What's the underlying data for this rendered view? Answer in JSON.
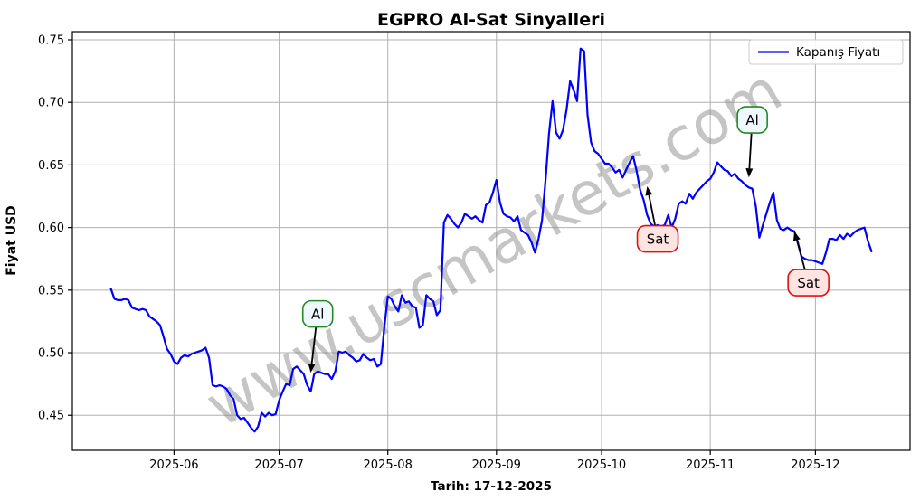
{
  "chart_data": {
    "type": "line",
    "title": "EGPRO Al-Sat Sinyalleri",
    "xlabel": "Tarih: 17-12-2025",
    "ylabel": "Fiyat USD",
    "legend_label": "Kapanış Fiyatı",
    "legend_position": "upper right",
    "watermark": "www.uscmarkets.com",
    "grid": true,
    "ylim": [
      0.422,
      0.7565
    ],
    "xlim": [
      "2025-05-03",
      "2025-12-28"
    ],
    "yticks": [
      "0.45",
      "0.50",
      "0.55",
      "0.60",
      "0.65",
      "0.70",
      "0.75"
    ],
    "xticks": [
      {
        "label": "2025-06",
        "date": "2025-06-01"
      },
      {
        "label": "2025-07",
        "date": "2025-07-01"
      },
      {
        "label": "2025-08",
        "date": "2025-08-01"
      },
      {
        "label": "2025-09",
        "date": "2025-09-01"
      },
      {
        "label": "2025-10",
        "date": "2025-10-01"
      },
      {
        "label": "2025-11",
        "date": "2025-11-01"
      },
      {
        "label": "2025-12",
        "date": "2025-12-01"
      }
    ],
    "colors": {
      "line": "#0000ff",
      "grid": "#b0b0b0",
      "frame": "#000000",
      "buy_border": "#228b22",
      "buy_fill": "#f0f8ff",
      "sell_border": "#e01010",
      "sell_fill": "#ffe4e1",
      "arrow": "#000000",
      "watermark": "#8c8c8c"
    },
    "signals": [
      {
        "label": "Al",
        "kind": "buy",
        "arrow_date": "2025-07-10",
        "arrow_value": 0.484,
        "box_date": "2025-07-12",
        "box_value": 0.531
      },
      {
        "label": "Sat",
        "kind": "sell",
        "arrow_date": "2025-10-14",
        "arrow_value": 0.633,
        "box_date": "2025-10-17",
        "box_value": 0.591
      },
      {
        "label": "Al",
        "kind": "buy",
        "arrow_date": "2025-11-12",
        "arrow_value": 0.64,
        "box_date": "2025-11-13",
        "box_value": 0.686
      },
      {
        "label": "Sat",
        "kind": "sell",
        "arrow_date": "2025-11-25",
        "arrow_value": 0.597,
        "box_date": "2025-11-29",
        "box_value": 0.556
      }
    ],
    "series": [
      {
        "name": "Kapanış Fiyatı",
        "points": [
          [
            "2025-05-14",
            0.551
          ],
          [
            "2025-05-15",
            0.543
          ],
          [
            "2025-05-16",
            0.542
          ],
          [
            "2025-05-17",
            0.542
          ],
          [
            "2025-05-18",
            0.543
          ],
          [
            "2025-05-19",
            0.542
          ],
          [
            "2025-05-20",
            0.536
          ],
          [
            "2025-05-21",
            0.535
          ],
          [
            "2025-05-22",
            0.534
          ],
          [
            "2025-05-23",
            0.535
          ],
          [
            "2025-05-24",
            0.534
          ],
          [
            "2025-05-25",
            0.529
          ],
          [
            "2025-05-26",
            0.527
          ],
          [
            "2025-05-27",
            0.525
          ],
          [
            "2025-05-28",
            0.522
          ],
          [
            "2025-05-29",
            0.513
          ],
          [
            "2025-05-30",
            0.503
          ],
          [
            "2025-05-31",
            0.499
          ],
          [
            "2025-06-01",
            0.493
          ],
          [
            "2025-06-02",
            0.491
          ],
          [
            "2025-06-03",
            0.496
          ],
          [
            "2025-06-04",
            0.498
          ],
          [
            "2025-06-05",
            0.497
          ],
          [
            "2025-06-06",
            0.499
          ],
          [
            "2025-06-07",
            0.5
          ],
          [
            "2025-06-08",
            0.501
          ],
          [
            "2025-06-09",
            0.502
          ],
          [
            "2025-06-10",
            0.504
          ],
          [
            "2025-06-11",
            0.496
          ],
          [
            "2025-06-12",
            0.474
          ],
          [
            "2025-06-13",
            0.473
          ],
          [
            "2025-06-14",
            0.474
          ],
          [
            "2025-06-15",
            0.473
          ],
          [
            "2025-06-16",
            0.471
          ],
          [
            "2025-06-17",
            0.466
          ],
          [
            "2025-06-18",
            0.463
          ],
          [
            "2025-06-19",
            0.45
          ],
          [
            "2025-06-20",
            0.447
          ],
          [
            "2025-06-21",
            0.448
          ],
          [
            "2025-06-22",
            0.444
          ],
          [
            "2025-06-23",
            0.44
          ],
          [
            "2025-06-24",
            0.437
          ],
          [
            "2025-06-25",
            0.441
          ],
          [
            "2025-06-26",
            0.452
          ],
          [
            "2025-06-27",
            0.449
          ],
          [
            "2025-06-28",
            0.452
          ],
          [
            "2025-06-29",
            0.45
          ],
          [
            "2025-06-30",
            0.451
          ],
          [
            "2025-07-01",
            0.462
          ],
          [
            "2025-07-02",
            0.469
          ],
          [
            "2025-07-03",
            0.475
          ],
          [
            "2025-07-04",
            0.474
          ],
          [
            "2025-07-05",
            0.487
          ],
          [
            "2025-07-06",
            0.489
          ],
          [
            "2025-07-07",
            0.486
          ],
          [
            "2025-07-08",
            0.483
          ],
          [
            "2025-07-09",
            0.474
          ],
          [
            "2025-07-10",
            0.469
          ],
          [
            "2025-07-11",
            0.483
          ],
          [
            "2025-07-12",
            0.485
          ],
          [
            "2025-07-13",
            0.484
          ],
          [
            "2025-07-14",
            0.483
          ],
          [
            "2025-07-15",
            0.483
          ],
          [
            "2025-07-16",
            0.479
          ],
          [
            "2025-07-17",
            0.485
          ],
          [
            "2025-07-18",
            0.501
          ],
          [
            "2025-07-19",
            0.5
          ],
          [
            "2025-07-20",
            0.501
          ],
          [
            "2025-07-21",
            0.498
          ],
          [
            "2025-07-22",
            0.496
          ],
          [
            "2025-07-23",
            0.493
          ],
          [
            "2025-07-24",
            0.494
          ],
          [
            "2025-07-25",
            0.499
          ],
          [
            "2025-07-26",
            0.496
          ],
          [
            "2025-07-27",
            0.494
          ],
          [
            "2025-07-28",
            0.495
          ],
          [
            "2025-07-29",
            0.489
          ],
          [
            "2025-07-30",
            0.491
          ],
          [
            "2025-07-31",
            0.52
          ],
          [
            "2025-08-01",
            0.545
          ],
          [
            "2025-08-02",
            0.543
          ],
          [
            "2025-08-03",
            0.537
          ],
          [
            "2025-08-04",
            0.533
          ],
          [
            "2025-08-05",
            0.546
          ],
          [
            "2025-08-06",
            0.54
          ],
          [
            "2025-08-07",
            0.541
          ],
          [
            "2025-08-08",
            0.537
          ],
          [
            "2025-08-09",
            0.536
          ],
          [
            "2025-08-10",
            0.52
          ],
          [
            "2025-08-11",
            0.522
          ],
          [
            "2025-08-12",
            0.546
          ],
          [
            "2025-08-13",
            0.543
          ],
          [
            "2025-08-14",
            0.541
          ],
          [
            "2025-08-15",
            0.53
          ],
          [
            "2025-08-16",
            0.534
          ],
          [
            "2025-08-17",
            0.604
          ],
          [
            "2025-08-18",
            0.61
          ],
          [
            "2025-08-19",
            0.607
          ],
          [
            "2025-08-20",
            0.603
          ],
          [
            "2025-08-21",
            0.6
          ],
          [
            "2025-08-22",
            0.604
          ],
          [
            "2025-08-23",
            0.611
          ],
          [
            "2025-08-24",
            0.609
          ],
          [
            "2025-08-25",
            0.607
          ],
          [
            "2025-08-26",
            0.609
          ],
          [
            "2025-08-27",
            0.606
          ],
          [
            "2025-08-28",
            0.604
          ],
          [
            "2025-08-29",
            0.618
          ],
          [
            "2025-08-30",
            0.62
          ],
          [
            "2025-08-31",
            0.628
          ],
          [
            "2025-09-01",
            0.638
          ],
          [
            "2025-09-02",
            0.62
          ],
          [
            "2025-09-03",
            0.611
          ],
          [
            "2025-09-04",
            0.609
          ],
          [
            "2025-09-05",
            0.608
          ],
          [
            "2025-09-06",
            0.605
          ],
          [
            "2025-09-07",
            0.609
          ],
          [
            "2025-09-08",
            0.598
          ],
          [
            "2025-09-09",
            0.596
          ],
          [
            "2025-09-10",
            0.594
          ],
          [
            "2025-09-11",
            0.588
          ],
          [
            "2025-09-12",
            0.58
          ],
          [
            "2025-09-13",
            0.591
          ],
          [
            "2025-09-14",
            0.606
          ],
          [
            "2025-09-15",
            0.638
          ],
          [
            "2025-09-16",
            0.675
          ],
          [
            "2025-09-17",
            0.701
          ],
          [
            "2025-09-18",
            0.676
          ],
          [
            "2025-09-19",
            0.671
          ],
          [
            "2025-09-20",
            0.678
          ],
          [
            "2025-09-21",
            0.694
          ],
          [
            "2025-09-22",
            0.717
          ],
          [
            "2025-09-23",
            0.71
          ],
          [
            "2025-09-24",
            0.701
          ],
          [
            "2025-09-25",
            0.743
          ],
          [
            "2025-09-26",
            0.741
          ],
          [
            "2025-09-27",
            0.69
          ],
          [
            "2025-09-28",
            0.668
          ],
          [
            "2025-09-29",
            0.661
          ],
          [
            "2025-09-30",
            0.659
          ],
          [
            "2025-10-01",
            0.655
          ],
          [
            "2025-10-02",
            0.651
          ],
          [
            "2025-10-03",
            0.651
          ],
          [
            "2025-10-04",
            0.648
          ],
          [
            "2025-10-05",
            0.644
          ],
          [
            "2025-10-06",
            0.646
          ],
          [
            "2025-10-07",
            0.64
          ],
          [
            "2025-10-08",
            0.646
          ],
          [
            "2025-10-09",
            0.652
          ],
          [
            "2025-10-10",
            0.657
          ],
          [
            "2025-10-11",
            0.645
          ],
          [
            "2025-10-12",
            0.63
          ],
          [
            "2025-10-13",
            0.622
          ],
          [
            "2025-10-14",
            0.61
          ],
          [
            "2025-10-15",
            0.603
          ],
          [
            "2025-10-16",
            0.601
          ],
          [
            "2025-10-17",
            0.602
          ],
          [
            "2025-10-18",
            0.601
          ],
          [
            "2025-10-19",
            0.602
          ],
          [
            "2025-10-20",
            0.61
          ],
          [
            "2025-10-21",
            0.6
          ],
          [
            "2025-10-22",
            0.607
          ],
          [
            "2025-10-23",
            0.619
          ],
          [
            "2025-10-24",
            0.621
          ],
          [
            "2025-10-25",
            0.619
          ],
          [
            "2025-10-26",
            0.627
          ],
          [
            "2025-10-27",
            0.623
          ],
          [
            "2025-10-28",
            0.628
          ],
          [
            "2025-10-29",
            0.631
          ],
          [
            "2025-10-30",
            0.634
          ],
          [
            "2025-10-31",
            0.637
          ],
          [
            "2025-11-01",
            0.639
          ],
          [
            "2025-11-02",
            0.644
          ],
          [
            "2025-11-03",
            0.652
          ],
          [
            "2025-11-04",
            0.649
          ],
          [
            "2025-11-05",
            0.646
          ],
          [
            "2025-11-06",
            0.645
          ],
          [
            "2025-11-07",
            0.641
          ],
          [
            "2025-11-08",
            0.643
          ],
          [
            "2025-11-09",
            0.639
          ],
          [
            "2025-11-10",
            0.637
          ],
          [
            "2025-11-11",
            0.634
          ],
          [
            "2025-11-12",
            0.632
          ],
          [
            "2025-11-13",
            0.631
          ],
          [
            "2025-11-14",
            0.617
          ],
          [
            "2025-11-15",
            0.592
          ],
          [
            "2025-11-16",
            0.602
          ],
          [
            "2025-11-17",
            0.611
          ],
          [
            "2025-11-18",
            0.62
          ],
          [
            "2025-11-19",
            0.628
          ],
          [
            "2025-11-20",
            0.606
          ],
          [
            "2025-11-21",
            0.599
          ],
          [
            "2025-11-22",
            0.598
          ],
          [
            "2025-11-23",
            0.6
          ],
          [
            "2025-11-24",
            0.598
          ],
          [
            "2025-11-25",
            0.597
          ],
          [
            "2025-11-26",
            0.588
          ],
          [
            "2025-11-27",
            0.577
          ],
          [
            "2025-11-28",
            0.575
          ],
          [
            "2025-11-29",
            0.574
          ],
          [
            "2025-11-30",
            0.574
          ],
          [
            "2025-12-01",
            0.573
          ],
          [
            "2025-12-02",
            0.572
          ],
          [
            "2025-12-03",
            0.571
          ],
          [
            "2025-12-04",
            0.58
          ],
          [
            "2025-12-05",
            0.591
          ],
          [
            "2025-12-06",
            0.591
          ],
          [
            "2025-12-07",
            0.59
          ],
          [
            "2025-12-08",
            0.594
          ],
          [
            "2025-12-09",
            0.591
          ],
          [
            "2025-12-10",
            0.595
          ],
          [
            "2025-12-11",
            0.593
          ],
          [
            "2025-12-12",
            0.596
          ],
          [
            "2025-12-13",
            0.598
          ],
          [
            "2025-12-14",
            0.599
          ],
          [
            "2025-12-15",
            0.6
          ],
          [
            "2025-12-16",
            0.589
          ],
          [
            "2025-12-17",
            0.581
          ]
        ]
      }
    ]
  }
}
